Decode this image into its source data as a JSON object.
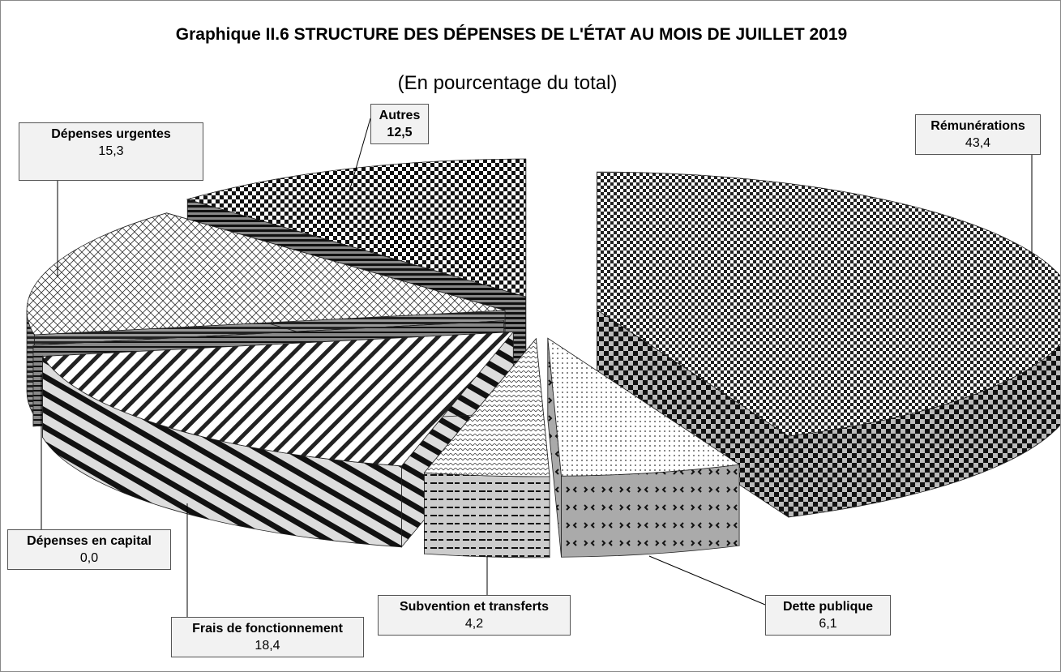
{
  "chart_data": {
    "type": "pie3d",
    "title": "Graphique II.6  STRUCTURE DES DÉPENSES DE L'ÉTAT  AU MOIS DE JUILLET 2019",
    "subtitle": "(En pourcentage du total)",
    "categories": [
      "Rémunérations",
      "Dette publique",
      "Subvention et transferts",
      "Frais de fonctionnement",
      "Dépenses en capital",
      "Dépenses urgentes",
      "Autres"
    ],
    "values": [
      43.4,
      6.1,
      4.2,
      18.4,
      0.0,
      15.3,
      12.5
    ],
    "value_labels": [
      "43,4",
      "6,1",
      "4,2",
      "18,4",
      "0,0",
      "15,3",
      "12,5"
    ]
  }
}
